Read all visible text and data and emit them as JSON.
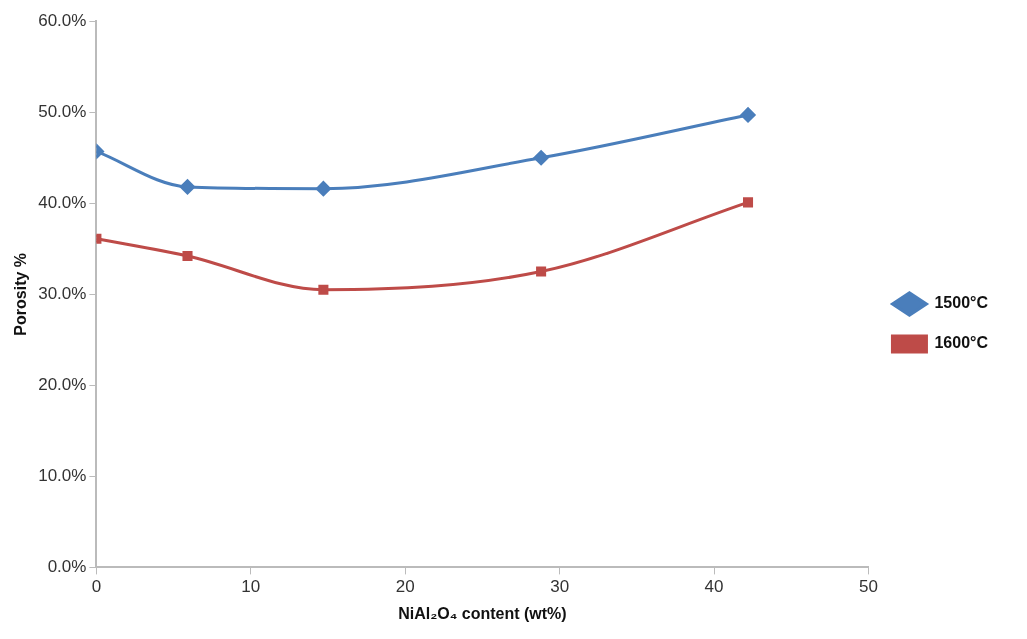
{
  "chart_data": {
    "type": "line",
    "xlabel": "NiAl₂O₄ content (wt%)",
    "ylabel": "Porosity %",
    "x": [
      0,
      5.9,
      14.7,
      28.8,
      42.2
    ],
    "series": [
      {
        "name": "1500°C",
        "color": "#4a7ebb",
        "values": [
          45.7,
          41.8,
          41.6,
          45.0,
          49.7
        ],
        "marker": "diamond"
      },
      {
        "name": "1600°C",
        "color": "#be4b48",
        "values": [
          36.1,
          34.2,
          30.5,
          32.5,
          40.1
        ],
        "marker": "square"
      }
    ],
    "xlim": [
      0,
      50
    ],
    "xticks": [
      0,
      10,
      20,
      30,
      40,
      50
    ],
    "ylim": [
      0,
      60
    ],
    "yticks": [
      {
        "value": 0,
        "label": "0.0%"
      },
      {
        "value": 10,
        "label": "10.0%"
      },
      {
        "value": 20,
        "label": "20.0%"
      },
      {
        "value": 30,
        "label": "30.0%"
      },
      {
        "value": 40,
        "label": "40.0%"
      },
      {
        "value": 50,
        "label": "50.0%"
      },
      {
        "value": 60,
        "label": "60.0%"
      }
    ],
    "grid": false,
    "legend": "right",
    "line_style": "solid"
  }
}
